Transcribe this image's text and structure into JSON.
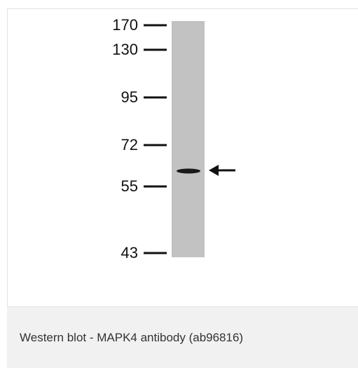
{
  "figure": {
    "markers": [
      "170",
      "130",
      "95",
      "72",
      "55",
      "43"
    ]
  },
  "caption": "Western blot - MAPK4 antibody (ab96816)"
}
